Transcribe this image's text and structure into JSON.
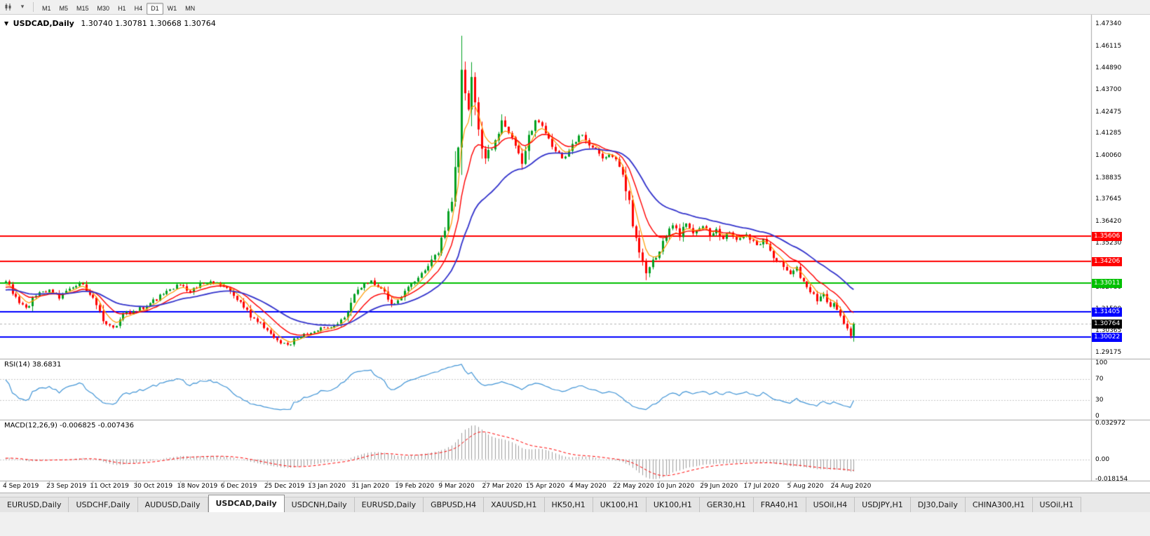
{
  "toolbar": {
    "timeframes": [
      "M1",
      "M5",
      "M15",
      "M30",
      "H1",
      "H4",
      "D1",
      "W1",
      "MN"
    ],
    "active_timeframe": "D1"
  },
  "window": {
    "marker": "▼",
    "title": "USDCAD,Daily",
    "ohlc": "1.30740 1.30781 1.30668 1.30764"
  },
  "chart_data": {
    "type": "candlestick",
    "symbol": "USDCAD",
    "timeframe": "Daily",
    "price_axis": [
      "1.47340",
      "1.46115",
      "1.44890",
      "1.43700",
      "1.42475",
      "1.41285",
      "1.40060",
      "1.38835",
      "1.37645",
      "1.36420",
      "1.35230",
      "1.34005",
      "1.32780",
      "1.31590",
      "1.30365",
      "1.29175"
    ],
    "price_range": {
      "top": 1.47843,
      "bottom": 1.28824
    },
    "date_axis": [
      "4 Sep 2019",
      "23 Sep 2019",
      "11 Oct 2019",
      "30 Oct 2019",
      "18 Nov 2019",
      "6 Dec 2019",
      "25 Dec 2019",
      "13 Jan 2020",
      "31 Jan 2020",
      "19 Feb 2020",
      "9 Mar 2020",
      "27 Mar 2020",
      "15 Apr 2020",
      "4 May 2020",
      "22 May 2020",
      "10 Jun 2020",
      "29 Jun 2020",
      "17 Jul 2020",
      "5 Aug 2020",
      "24 Aug 2020"
    ],
    "candles_per_label": 13,
    "visible_candles": 254,
    "close_anchors": [
      [
        -40,
        1.3215
      ],
      [
        -34,
        1.326
      ],
      [
        -28,
        1.322
      ],
      [
        -22,
        1.327
      ],
      [
        -16,
        1.3235
      ],
      [
        -10,
        1.329
      ],
      [
        -5,
        1.325
      ],
      [
        0,
        1.331
      ],
      [
        3,
        1.3225
      ],
      [
        6,
        1.3165
      ],
      [
        9,
        1.323
      ],
      [
        13,
        1.3265
      ],
      [
        16,
        1.3215
      ],
      [
        19,
        1.327
      ],
      [
        22,
        1.33
      ],
      [
        26,
        1.322
      ],
      [
        29,
        1.309
      ],
      [
        32,
        1.3055
      ],
      [
        35,
        1.313
      ],
      [
        39,
        1.3145
      ],
      [
        43,
        1.319
      ],
      [
        47,
        1.324
      ],
      [
        52,
        1.329
      ],
      [
        55,
        1.325
      ],
      [
        58,
        1.33
      ],
      [
        61,
        1.331
      ],
      [
        65,
        1.328
      ],
      [
        68,
        1.323
      ],
      [
        71,
        1.3165
      ],
      [
        74,
        1.3105
      ],
      [
        78,
        1.304
      ],
      [
        81,
        1.2985
      ],
      [
        84,
        1.296
      ],
      [
        87,
        1.2995
      ],
      [
        91,
        1.3025
      ],
      [
        95,
        1.3055
      ],
      [
        99,
        1.3075
      ],
      [
        102,
        1.314
      ],
      [
        104,
        1.324
      ],
      [
        107,
        1.33
      ],
      [
        109,
        1.3315
      ],
      [
        112,
        1.327
      ],
      [
        115,
        1.3185
      ],
      [
        117,
        1.3205
      ],
      [
        120,
        1.328
      ],
      [
        123,
        1.333
      ],
      [
        126,
        1.3395
      ],
      [
        129,
        1.3465
      ],
      [
        131,
        1.359
      ],
      [
        133,
        1.375
      ],
      [
        135,
        1.405
      ],
      [
        136,
        1.448
      ],
      [
        137,
        1.435
      ],
      [
        138,
        1.426
      ],
      [
        139,
        1.444
      ],
      [
        140,
        1.43
      ],
      [
        141,
        1.415
      ],
      [
        143,
        1.399
      ],
      [
        146,
        1.409
      ],
      [
        148,
        1.42
      ],
      [
        150,
        1.413
      ],
      [
        152,
        1.406
      ],
      [
        154,
        1.396
      ],
      [
        156,
        1.412
      ],
      [
        158,
        1.42
      ],
      [
        160,
        1.417
      ],
      [
        162,
        1.41
      ],
      [
        164,
        1.403
      ],
      [
        166,
        1.399
      ],
      [
        169,
        1.407
      ],
      [
        172,
        1.412
      ],
      [
        175,
        1.405
      ],
      [
        178,
        1.399
      ],
      [
        180,
        1.401
      ],
      [
        182,
        1.3985
      ],
      [
        184,
        1.39
      ],
      [
        186,
        1.376
      ],
      [
        188,
        1.355
      ],
      [
        190,
        1.342
      ],
      [
        191,
        1.3355
      ],
      [
        193,
        1.343
      ],
      [
        195,
        1.3475
      ],
      [
        197,
        1.356
      ],
      [
        199,
        1.362
      ],
      [
        201,
        1.3555
      ],
      [
        203,
        1.363
      ],
      [
        205,
        1.3575
      ],
      [
        208,
        1.3615
      ],
      [
        210,
        1.356
      ],
      [
        212,
        1.36
      ],
      [
        214,
        1.3545
      ],
      [
        216,
        1.358
      ],
      [
        218,
        1.354
      ],
      [
        221,
        1.357
      ],
      [
        224,
        1.351
      ],
      [
        226,
        1.3545
      ],
      [
        228,
        1.348
      ],
      [
        230,
        1.342
      ],
      [
        232,
        1.339
      ],
      [
        234,
        1.335
      ],
      [
        236,
        1.339
      ],
      [
        238,
        1.331
      ],
      [
        240,
        1.325
      ],
      [
        242,
        1.32
      ],
      [
        244,
        1.324
      ],
      [
        246,
        1.317
      ],
      [
        247,
        1.319
      ],
      [
        249,
        1.312
      ],
      [
        251,
        1.305
      ],
      [
        252,
        1.3008
      ],
      [
        253,
        1.3076
      ]
    ],
    "wick_overrides": [
      [
        136,
        "h",
        1.4668
      ],
      [
        252,
        "l",
        1.2994
      ]
    ],
    "hlines": [
      {
        "label": "1.35606",
        "price": 1.35606,
        "color": "#FF0000",
        "width": 2
      },
      {
        "label": "1.34206",
        "price": 1.34206,
        "color": "#FF0000",
        "width": 2
      },
      {
        "label": "1.33011",
        "price": 1.33011,
        "color": "#00C000",
        "width": 2
      },
      {
        "label": "1.31405",
        "price": 1.31405,
        "color": "#0000FF",
        "width": 2
      },
      {
        "label": "1.30022",
        "price": 1.30022,
        "color": "#0000FF",
        "width": 2
      }
    ],
    "current_price": {
      "label": "1.30764",
      "value": 1.30764,
      "badge_color": "#000000",
      "line_color": "#B4B4B4"
    },
    "moving_averages": [
      {
        "name": "fast-ma",
        "period": 5,
        "color": "#FF9900",
        "width": 1.2
      },
      {
        "name": "medium-ma",
        "period": 12,
        "color": "#FF0000",
        "width": 1.4
      },
      {
        "name": "slow-ma",
        "period": 30,
        "color": "#3333CC",
        "width": 1.8
      }
    ],
    "indicators": {
      "rsi": {
        "label": "RSI(14) 38.6831",
        "period": 14,
        "levels": [
          "100",
          "70",
          "30",
          "0"
        ],
        "color": "#4094D6",
        "last": 38.6831
      },
      "macd": {
        "label": "MACD(12,26,9) -0.006825 -0.007436",
        "fast": 12,
        "slow": 26,
        "signal": 9,
        "axis_labels": [
          "0.032972",
          "0.00",
          "-0.018154"
        ],
        "hist_color": "#9E9E9E",
        "signal_color": "#FF0000",
        "last_macd": -0.006825,
        "last_signal": -0.007436
      }
    },
    "colors": {
      "up": "#00A021",
      "down": "#FF0000",
      "background": "#FFFFFF",
      "axis_text": "#000000",
      "separator": "#A6A6A6",
      "level_dash": "#C8C8C8"
    }
  },
  "tabs": {
    "items": [
      "EURUSD,Daily",
      "USDCHF,Daily",
      "AUDUSD,Daily",
      "USDCAD,Daily",
      "USDCNH,Daily",
      "EURUSD,Daily",
      "GBPUSD,H4",
      "XAUUSD,H1",
      "HK50,H1",
      "UK100,H1",
      "UK100,H1",
      "GER30,H1",
      "FRA40,H1",
      "USOil,H4",
      "USDJPY,H1",
      "DJ30,Daily",
      "CHINA300,H1",
      "USOil,H1"
    ],
    "active_index": 3
  }
}
